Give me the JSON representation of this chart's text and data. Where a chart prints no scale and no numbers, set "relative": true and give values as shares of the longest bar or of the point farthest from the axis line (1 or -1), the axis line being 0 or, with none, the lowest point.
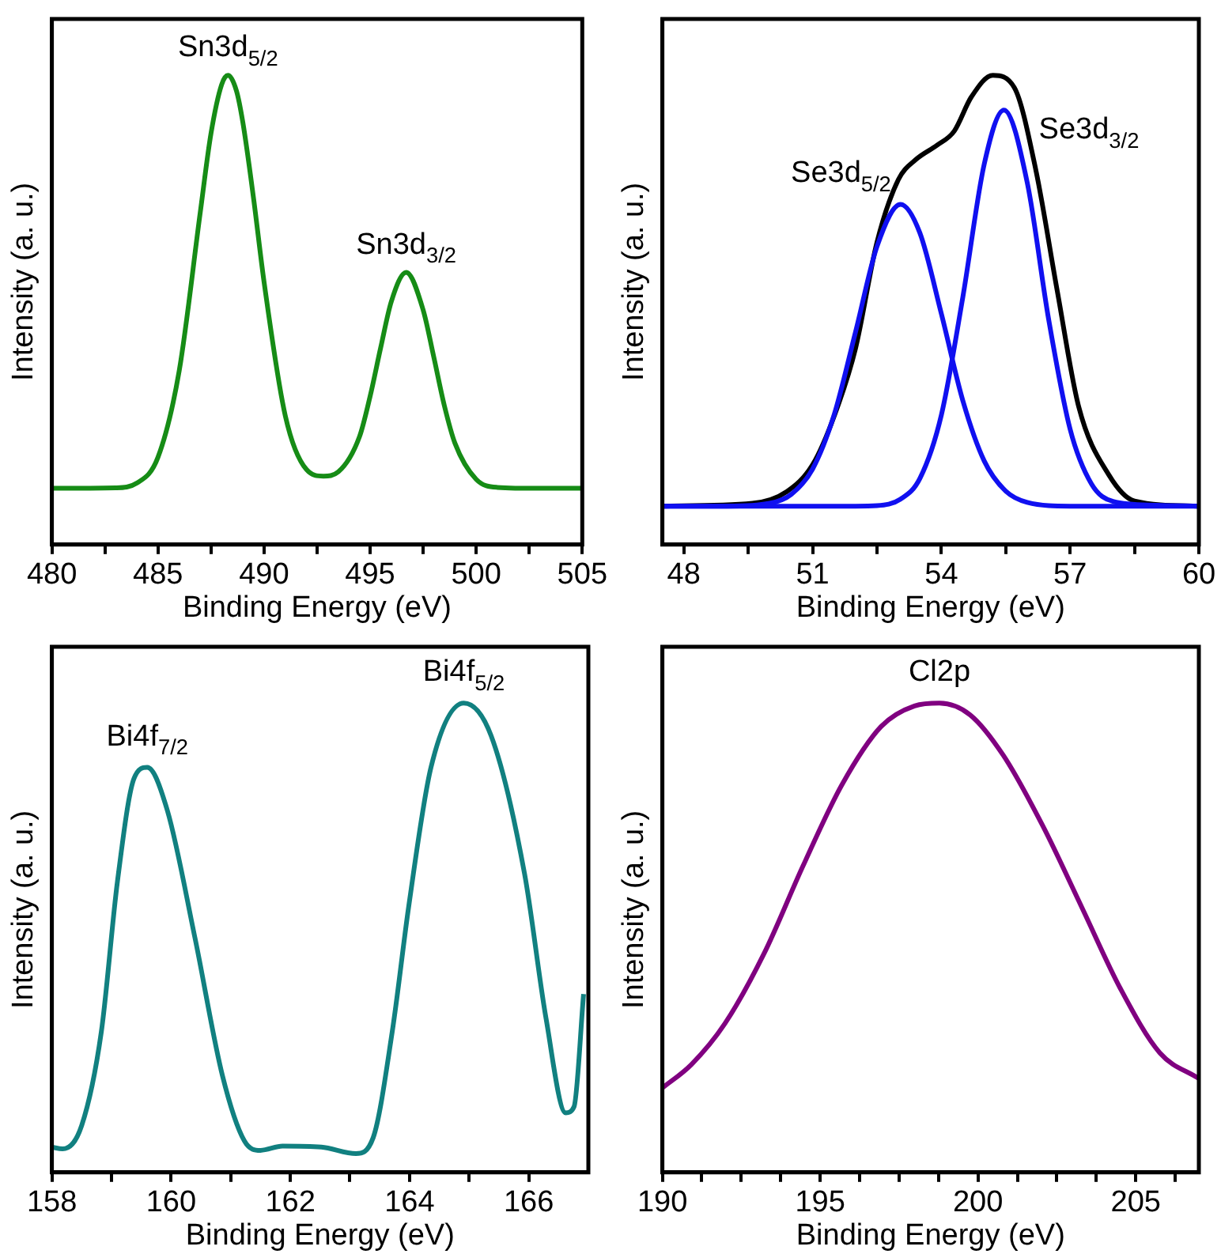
{
  "chart_data": [
    {
      "type": "line",
      "xlabel": "Binding Energy (eV)",
      "ylabel": "Intensity (a. u.)",
      "relative": true,
      "xlim": [
        480,
        505
      ],
      "xticks": [
        480,
        {
          "value": 482.5,
          "label": null
        },
        485,
        {
          "value": 487.5,
          "label": null
        },
        490,
        {
          "value": 492.5,
          "label": null
        },
        495,
        {
          "value": 497.5,
          "label": null
        },
        500,
        {
          "value": 502.5,
          "label": null
        },
        505
      ],
      "x": [
        480,
        483,
        484,
        485,
        486,
        487,
        487.5,
        488,
        488.3,
        488.7,
        489,
        489.5,
        490,
        491,
        492,
        492.8,
        493.5,
        494.5,
        495,
        495.5,
        496,
        496.7,
        497.5,
        498,
        498.5,
        499,
        500,
        501,
        503,
        505
      ],
      "series": [
        {
          "color": "#168c16",
          "values": [
            0.12,
            0.121,
            0.131,
            0.186,
            0.37,
            0.71,
            0.876,
            0.98,
            1.0,
            0.967,
            0.9,
            0.74,
            0.56,
            0.275,
            0.16,
            0.146,
            0.155,
            0.23,
            0.316,
            0.42,
            0.518,
            0.58,
            0.5,
            0.4,
            0.296,
            0.216,
            0.139,
            0.122,
            0.12,
            0.12
          ]
        }
      ],
      "annotations": [
        {
          "text": "Sn3d$_{5/2}$",
          "x": 488.3,
          "y": 1.0
        },
        {
          "text": "Sn3d$_{3/2}$",
          "x": 496.7,
          "y": 0.58
        }
      ]
    },
    {
      "type": "line",
      "xlabel": "Binding Energy (eV)",
      "ylabel": "Intensity (a. u.)",
      "relative": true,
      "xlim": [
        47.5,
        60
      ],
      "xticks": [
        48,
        {
          "value": 49.5,
          "label": null
        },
        51,
        {
          "value": 52.5,
          "label": null
        },
        54,
        {
          "value": 55.5,
          "label": null
        },
        57,
        {
          "value": 58.5,
          "label": null
        },
        60
      ],
      "series": [
        {
          "color": "#000000",
          "x": [
            47.5,
            49.6,
            50.4,
            51.0,
            51.5,
            52.0,
            52.5,
            53.0,
            53.4,
            53.9,
            54.3,
            54.7,
            55.2,
            55.7,
            56.2,
            56.7,
            57.2,
            57.9,
            58.5,
            60
          ],
          "values": [
            0.082,
            0.088,
            0.113,
            0.17,
            0.273,
            0.418,
            0.644,
            0.778,
            0.82,
            0.851,
            0.881,
            0.954,
            1.0,
            0.974,
            0.799,
            0.541,
            0.294,
            0.149,
            0.093,
            0.082
          ]
        },
        {
          "color": "#1010f0",
          "x": [
            47.5,
            49,
            50,
            50.5,
            51,
            51.5,
            52,
            52.5,
            53.05,
            53.5,
            54,
            54.5,
            55,
            55.5,
            56,
            57,
            58,
            60
          ],
          "values": [
            0.082,
            0.082,
            0.088,
            0.107,
            0.161,
            0.276,
            0.453,
            0.635,
            0.725,
            0.664,
            0.492,
            0.307,
            0.178,
            0.114,
            0.09,
            0.082,
            0.082,
            0.082
          ]
        },
        {
          "color": "#1010f0",
          "x": [
            47.5,
            51,
            52,
            52.5,
            53.05,
            53.5,
            54,
            54.5,
            55,
            55.46,
            56,
            56.5,
            57,
            57.5,
            58,
            59,
            60
          ],
          "values": [
            0.082,
            0.082,
            0.082,
            0.083,
            0.097,
            0.141,
            0.276,
            0.527,
            0.811,
            0.926,
            0.772,
            0.48,
            0.246,
            0.129,
            0.092,
            0.084,
            0.082
          ]
        }
      ],
      "annotations": [
        {
          "text": "Se3d$_{5/2}$",
          "x": 53.05,
          "y": 0.725
        },
        {
          "text": "Se3d$_{3/2}$",
          "x": 55.46,
          "y": 0.926
        }
      ]
    },
    {
      "type": "line",
      "xlabel": "Binding Energy (eV)",
      "ylabel": "Intensity (a. u.)",
      "relative": true,
      "xlim": [
        158,
        167
      ],
      "xticks": [
        158,
        {
          "value": 159,
          "label": null
        },
        160,
        {
          "value": 161,
          "label": null
        },
        162,
        {
          "value": 163,
          "label": null
        },
        164,
        {
          "value": 165,
          "label": null
        },
        166
      ],
      "x": [
        158,
        158.18,
        158.5,
        158.83,
        159.1,
        159.38,
        159.6,
        159.94,
        160.4,
        160.86,
        161.23,
        161.5,
        161.87,
        162.52,
        163.1,
        163.39,
        163.71,
        163.99,
        164.36,
        164.91,
        165.37,
        165.93,
        166.29,
        166.62,
        166.76,
        166.92
      ],
      "series": [
        {
          "color": "#118080",
          "values": [
            0.054,
            0.05,
            0.1,
            0.3,
            0.62,
            0.84,
            0.863,
            0.77,
            0.5,
            0.207,
            0.067,
            0.047,
            0.056,
            0.054,
            0.04,
            0.074,
            0.3,
            0.57,
            0.863,
            1.0,
            0.93,
            0.636,
            0.328,
            0.127,
            0.14,
            0.38
          ]
        }
      ],
      "annotations": [
        {
          "text": "Bi4f$_{7/2}$",
          "x": 159.6,
          "y": 0.863
        },
        {
          "text": "Bi4f$_{5/2}$",
          "x": 164.91,
          "y": 1.0
        }
      ]
    },
    {
      "type": "line",
      "xlabel": "Binding Energy (eV)",
      "ylabel": "Intensity (a. u.)",
      "relative": true,
      "xlim": [
        190,
        207
      ],
      "xticks": [
        190,
        {
          "value": 191.25,
          "label": null
        },
        {
          "value": 192.5,
          "label": null
        },
        {
          "value": 193.75,
          "label": null
        },
        195,
        {
          "value": 196.25,
          "label": null
        },
        {
          "value": 197.5,
          "label": null
        },
        {
          "value": 198.75,
          "label": null
        },
        200,
        {
          "value": 201.25,
          "label": null
        },
        {
          "value": 202.5,
          "label": null
        },
        {
          "value": 203.75,
          "label": null
        },
        205,
        {
          "value": 206.25,
          "label": null
        }
      ],
      "x": [
        190,
        190.92,
        191.98,
        193.22,
        194.45,
        195.69,
        196.93,
        197.99,
        198.78,
        199.75,
        200.81,
        202.05,
        203.29,
        204.52,
        205.76,
        207
      ],
      "series": [
        {
          "color": "#800080",
          "values": [
            0.18,
            0.23,
            0.317,
            0.466,
            0.652,
            0.826,
            0.95,
            0.994,
            1.0,
            0.975,
            0.888,
            0.739,
            0.565,
            0.391,
            0.255,
            0.2
          ]
        }
      ],
      "annotations": [
        {
          "text": "Cl2p",
          "x": 198.78,
          "y": 1.0
        }
      ]
    }
  ]
}
